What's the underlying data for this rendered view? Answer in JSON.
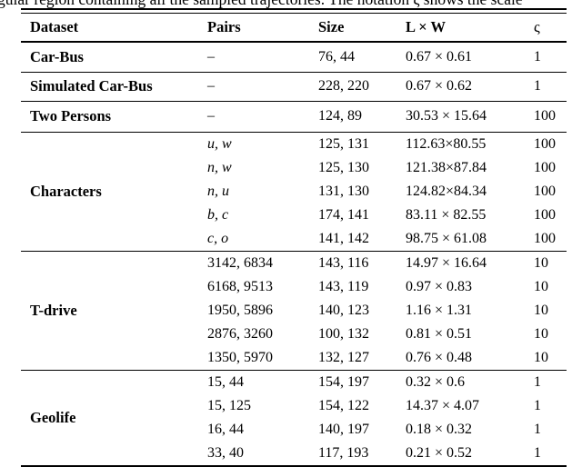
{
  "caption": "gular region containing all the sampled trajectories.  The notation ς shows the scale",
  "table": {
    "columns": {
      "dataset": "Dataset",
      "pairs": "Pairs",
      "size": "Size",
      "lw": "L × W",
      "scale": "ς"
    },
    "groups": [
      {
        "dataset": "Car-Bus",
        "rows": [
          {
            "pairs": "–",
            "size": "76, 44",
            "lw": "0.67 × 0.61",
            "scale": "1"
          }
        ]
      },
      {
        "dataset": "Simulated Car-Bus",
        "rows": [
          {
            "pairs": "–",
            "size": "228, 220",
            "lw": "0.67 × 0.62",
            "scale": "1"
          }
        ]
      },
      {
        "dataset": "Two Persons",
        "rows": [
          {
            "pairs": "–",
            "size": "124, 89",
            "lw": "30.53 × 15.64",
            "scale": "100"
          }
        ]
      },
      {
        "dataset": "Characters",
        "rows": [
          {
            "pairs": "u, w",
            "size": "125, 131",
            "lw": "112.63×80.55",
            "scale": "100"
          },
          {
            "pairs": "n, w",
            "size": "125, 130",
            "lw": "121.38×87.84",
            "scale": "100"
          },
          {
            "pairs": "n, u",
            "size": "131, 130",
            "lw": "124.82×84.34",
            "scale": "100"
          },
          {
            "pairs": "b, c",
            "size": "174, 141",
            "lw": "83.11 × 82.55",
            "scale": "100"
          },
          {
            "pairs": "c, o",
            "size": "141, 142",
            "lw": "98.75 × 61.08",
            "scale": "100"
          }
        ]
      },
      {
        "dataset": "T-drive",
        "rows": [
          {
            "pairs": "3142, 6834",
            "size": "143, 116",
            "lw": "14.97 × 16.64",
            "scale": "10"
          },
          {
            "pairs": "6168, 9513",
            "size": "143, 119",
            "lw": "0.97 × 0.83",
            "scale": "10"
          },
          {
            "pairs": "1950, 5896",
            "size": "140, 123",
            "lw": "1.16 × 1.31",
            "scale": "10"
          },
          {
            "pairs": "2876, 3260",
            "size": "100, 132",
            "lw": "0.81 × 0.51",
            "scale": "10"
          },
          {
            "pairs": "1350, 5970",
            "size": "132, 127",
            "lw": "0.76 × 0.48",
            "scale": "10"
          }
        ]
      },
      {
        "dataset": "Geolife",
        "rows": [
          {
            "pairs": "15, 44",
            "size": "154, 197",
            "lw": "0.32 × 0.6",
            "scale": "1"
          },
          {
            "pairs": "15, 125",
            "size": "154, 122",
            "lw": "14.37 × 4.07",
            "scale": "1"
          },
          {
            "pairs": "16, 44",
            "size": "140, 197",
            "lw": "0.18 × 0.32",
            "scale": "1"
          },
          {
            "pairs": "33, 40",
            "size": "117, 193",
            "lw": "0.21 × 0.52",
            "scale": "1"
          }
        ]
      }
    ]
  }
}
